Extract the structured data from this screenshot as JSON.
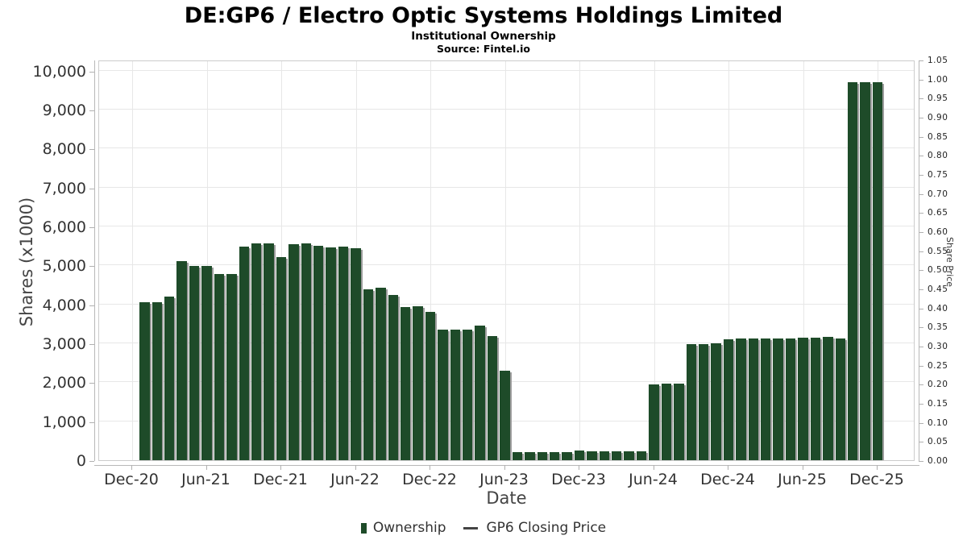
{
  "title": "DE:GP6 / Electro Optic Systems Holdings Limited",
  "subtitle": "Institutional Ownership",
  "source": "Source: Fintel.io",
  "colors": {
    "bar": "#1e4b29",
    "bar_shadow": "#9c9c9c",
    "grid": "#e7e7e7",
    "plot_border": "#cccccc",
    "axis_text": "#333333",
    "legend_line": "#444444"
  },
  "chart_data": {
    "type": "bar",
    "title": "DE:GP6 / Electro Optic Systems Holdings Limited",
    "subtitle": "Institutional Ownership",
    "source": "Source: Fintel.io",
    "xlabel": "Date",
    "ylabel_left": "Shares (x1000)",
    "ylabel_right": "Share Price",
    "ylim_left": [
      0,
      10000
    ],
    "ylim_right": [
      0,
      1.05
    ],
    "grid": true,
    "legend_position": "bottom",
    "legend": [
      {
        "label": "Ownership",
        "marker": "square",
        "color": "#1e4b29"
      },
      {
        "label": "GP6 Closing Price",
        "marker": "line",
        "color": "#444444"
      }
    ],
    "x": [
      "Jan-21",
      "Feb-21",
      "Mar-21",
      "Apr-21",
      "May-21",
      "Jun-21",
      "Jul-21",
      "Aug-21",
      "Sep-21",
      "Oct-21",
      "Nov-21",
      "Dec-21",
      "Jan-22",
      "Feb-22",
      "Mar-22",
      "Apr-22",
      "May-22",
      "Jun-22",
      "Jul-22",
      "Aug-22",
      "Sep-22",
      "Oct-22",
      "Nov-22",
      "Dec-22",
      "Jan-23",
      "Feb-23",
      "Mar-23",
      "Apr-23",
      "May-23",
      "Jun-23",
      "Jul-23",
      "Aug-23",
      "Sep-23",
      "Oct-23",
      "Nov-23",
      "Dec-23",
      "Jan-24",
      "Feb-24",
      "Mar-24",
      "Apr-24",
      "May-24",
      "Jun-24",
      "Jul-24",
      "Aug-24",
      "Sep-24",
      "Oct-24",
      "Nov-24",
      "Dec-24",
      "Jan-25",
      "Feb-25",
      "Mar-25",
      "Apr-25",
      "May-25",
      "Jun-25",
      "Jul-25",
      "Aug-25",
      "Sep-25",
      "Oct-25",
      "Nov-25",
      "Dec-25"
    ],
    "values": [
      4050,
      4050,
      4200,
      5100,
      4980,
      4980,
      4780,
      4770,
      5480,
      5570,
      5570,
      5220,
      5540,
      5560,
      5500,
      5460,
      5490,
      5430,
      4390,
      4420,
      4230,
      3940,
      3950,
      3800,
      3360,
      3360,
      3360,
      3460,
      3190,
      2290,
      200,
      200,
      200,
      200,
      200,
      250,
      230,
      230,
      230,
      230,
      230,
      1940,
      1975,
      1975,
      2980,
      2980,
      3000,
      3100,
      3130,
      3120,
      3120,
      3120,
      3120,
      3150,
      3150,
      3170,
      3115,
      9700,
      9700,
      9700
    ],
    "series_name": "Ownership",
    "left_tick_labels": [
      "0",
      "1,000",
      "2,000",
      "3,000",
      "4,000",
      "5,000",
      "6,000",
      "7,000",
      "8,000",
      "9,000",
      "10,000"
    ],
    "left_tick_values": [
      0,
      1000,
      2000,
      3000,
      4000,
      5000,
      6000,
      7000,
      8000,
      9000,
      10000
    ],
    "right_tick_labels": [
      "0.00",
      "0.05",
      "0.10",
      "0.15",
      "0.20",
      "0.25",
      "0.30",
      "0.35",
      "0.40",
      "0.45",
      "0.50",
      "0.55",
      "0.60",
      "0.65",
      "0.70",
      "0.75",
      "0.80",
      "0.85",
      "0.90",
      "0.95",
      "1.00",
      "1.05"
    ],
    "right_tick_values": [
      0,
      0.05,
      0.1,
      0.15,
      0.2,
      0.25,
      0.3,
      0.35,
      0.4,
      0.45,
      0.5,
      0.55,
      0.6,
      0.65,
      0.7,
      0.75,
      0.8,
      0.85,
      0.9,
      0.95,
      1.0,
      1.05
    ],
    "x_tick_labels": [
      "Dec-20",
      "Jun-21",
      "Dec-21",
      "Jun-22",
      "Dec-22",
      "Jun-23",
      "Dec-23",
      "Jun-24",
      "Dec-24",
      "Jun-25",
      "Dec-25"
    ]
  }
}
